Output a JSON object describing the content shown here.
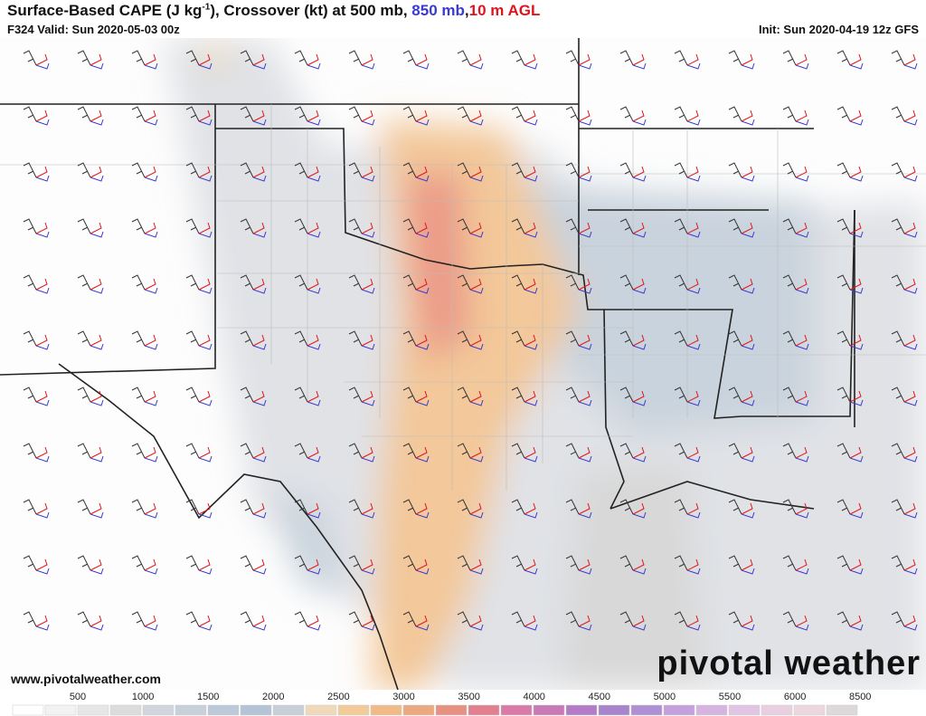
{
  "header": {
    "title_start": "Surface-Based CAPE (J kg",
    "title_sup": "-1",
    "title_mid": "), Crossover (kt) at 500 mb,",
    "title_blue": "850 mb",
    "title_comma": ",",
    "title_red": "10 m AGL",
    "valid": "F324 Valid: Sun 2020-05-03 00z",
    "init": "Init: Sun 2020-04-19 12z GFS"
  },
  "footer": {
    "website": "www.pivotalweather.com",
    "logo": "pivotal weather"
  },
  "colorbar": {
    "ticks": [
      500,
      1000,
      1500,
      2000,
      2500,
      3000,
      3500,
      4000,
      4500,
      5000,
      5500,
      6000,
      8500
    ]
  }
}
